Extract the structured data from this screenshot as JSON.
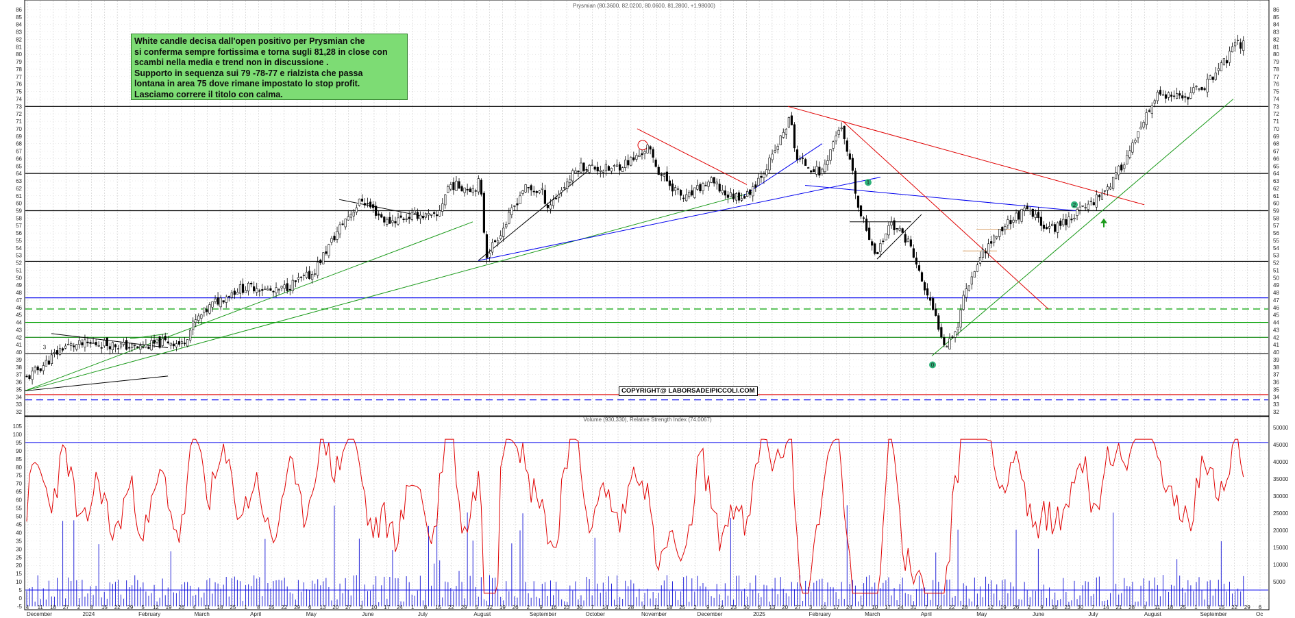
{
  "chart_data": [
    {
      "type": "candlestick",
      "title": "Prysmian (80.3600, 82.0200, 80.0600, 81.2800, +1.98000)",
      "ylim": [
        32,
        86
      ],
      "y_ticks": [
        32,
        33,
        34,
        35,
        36,
        37,
        38,
        39,
        40,
        41,
        42,
        43,
        44,
        45,
        46,
        47,
        48,
        49,
        50,
        51,
        52,
        53,
        54,
        55,
        56,
        57,
        58,
        59,
        60,
        61,
        62,
        63,
        64,
        65,
        66,
        67,
        68,
        69,
        70,
        71,
        72,
        73,
        74,
        75,
        76,
        77,
        78,
        79,
        80,
        81,
        82,
        83,
        84,
        85,
        86
      ],
      "x_day_ticks": [
        "4",
        "11",
        "18",
        "27",
        "2",
        "8",
        "15",
        "22",
        "29",
        "5",
        "12",
        "19",
        "26",
        "4",
        "11",
        "18",
        "25",
        "1",
        "8",
        "15",
        "22",
        "29",
        "6",
        "13",
        "20",
        "27",
        "3",
        "10",
        "17",
        "24",
        "1",
        "8",
        "15",
        "22",
        "29",
        "5",
        "12",
        "19",
        "26",
        "2",
        "9",
        "16",
        "23",
        "30",
        "7",
        "14",
        "21",
        "28",
        "4",
        "11",
        "18",
        "25",
        "2",
        "9",
        "16",
        "23",
        "30",
        "6",
        "13",
        "20",
        "27",
        "3",
        "10",
        "17",
        "24",
        "3",
        "10",
        "17",
        "24",
        "31",
        "7",
        "14",
        "22",
        "28",
        "5",
        "12",
        "19",
        "26",
        "2",
        "9",
        "16",
        "23",
        "30",
        "7",
        "14",
        "21",
        "28",
        "4",
        "11",
        "18",
        "25",
        "1",
        "8",
        "15",
        "22",
        "29",
        "6"
      ],
      "x_month_labels": [
        "December",
        "2024",
        "February",
        "March",
        "April",
        "May",
        "June",
        "July",
        "August",
        "September",
        "October",
        "November",
        "December",
        "2025",
        "February",
        "March",
        "April",
        "May",
        "June",
        "July",
        "August",
        "September",
        "Oc"
      ],
      "close_path": [
        {
          "p": 0.0,
          "v": 36.5
        },
        {
          "p": 0.015,
          "v": 38.5
        },
        {
          "p": 0.03,
          "v": 40.8
        },
        {
          "p": 0.06,
          "v": 41.2
        },
        {
          "p": 0.09,
          "v": 40.6
        },
        {
          "p": 0.115,
          "v": 41.5
        },
        {
          "p": 0.125,
          "v": 41.0
        },
        {
          "p": 0.135,
          "v": 44.0
        },
        {
          "p": 0.15,
          "v": 46.5
        },
        {
          "p": 0.17,
          "v": 48.5
        },
        {
          "p": 0.185,
          "v": 48.8
        },
        {
          "p": 0.2,
          "v": 48.0
        },
        {
          "p": 0.23,
          "v": 50.5
        },
        {
          "p": 0.255,
          "v": 57.5
        },
        {
          "p": 0.27,
          "v": 60.5
        },
        {
          "p": 0.29,
          "v": 57.5
        },
        {
          "p": 0.315,
          "v": 58.5
        },
        {
          "p": 0.33,
          "v": 58.0
        },
        {
          "p": 0.34,
          "v": 62.5
        },
        {
          "p": 0.36,
          "v": 62.0
        },
        {
          "p": 0.365,
          "v": 63.0
        },
        {
          "p": 0.37,
          "v": 53.0
        },
        {
          "p": 0.385,
          "v": 57.0
        },
        {
          "p": 0.4,
          "v": 62.0
        },
        {
          "p": 0.415,
          "v": 61.5
        },
        {
          "p": 0.42,
          "v": 59.5
        },
        {
          "p": 0.445,
          "v": 65.0
        },
        {
          "p": 0.47,
          "v": 64.5
        },
        {
          "p": 0.49,
          "v": 66.0
        },
        {
          "p": 0.5,
          "v": 67.5
        },
        {
          "p": 0.51,
          "v": 64.0
        },
        {
          "p": 0.53,
          "v": 60.5
        },
        {
          "p": 0.55,
          "v": 63.0
        },
        {
          "p": 0.565,
          "v": 61.0
        },
        {
          "p": 0.58,
          "v": 61.0
        },
        {
          "p": 0.6,
          "v": 66.0
        },
        {
          "p": 0.615,
          "v": 71.5
        },
        {
          "p": 0.62,
          "v": 66.0
        },
        {
          "p": 0.64,
          "v": 64.0
        },
        {
          "p": 0.655,
          "v": 70.5
        },
        {
          "p": 0.665,
          "v": 64.0
        },
        {
          "p": 0.67,
          "v": 59.0
        },
        {
          "p": 0.685,
          "v": 53.0
        },
        {
          "p": 0.695,
          "v": 57.5
        },
        {
          "p": 0.71,
          "v": 55.0
        },
        {
          "p": 0.72,
          "v": 50.0
        },
        {
          "p": 0.73,
          "v": 45.5
        },
        {
          "p": 0.74,
          "v": 41.0
        },
        {
          "p": 0.75,
          "v": 43.5
        },
        {
          "p": 0.755,
          "v": 48.0
        },
        {
          "p": 0.77,
          "v": 53.5
        },
        {
          "p": 0.79,
          "v": 57.5
        },
        {
          "p": 0.805,
          "v": 59.0
        },
        {
          "p": 0.825,
          "v": 56.5
        },
        {
          "p": 0.84,
          "v": 58.0
        },
        {
          "p": 0.86,
          "v": 60.5
        },
        {
          "p": 0.875,
          "v": 63.0
        },
        {
          "p": 0.895,
          "v": 69.0
        },
        {
          "p": 0.91,
          "v": 74.5
        },
        {
          "p": 0.93,
          "v": 74.0
        },
        {
          "p": 0.95,
          "v": 76.0
        },
        {
          "p": 0.965,
          "v": 79.0
        },
        {
          "p": 0.975,
          "v": 81.5
        },
        {
          "p": 0.98,
          "v": 81.28
        }
      ],
      "annotation": [
        "White candle decisa dall'open positivo per Prysmian che",
        "si conferma sempre fortissima e torna sugli 81,28 in close con",
        "scambi nella media e trend non in discussione .",
        "Supporto in sequenza sui 79 -78-77 e rialzista che passa",
        "lontana in area 75 dove rimane impostato lo stop profit.",
        "Lasciamo correre il titolo con calma."
      ],
      "copyright": "COPYRIGHT@ LABORSADEIPICCOLI.COM",
      "markers": [
        "3",
        "1",
        "2",
        "0"
      ],
      "horizontal_levels": [
        {
          "value": 73,
          "color": "#000000",
          "style": "solid"
        },
        {
          "value": 64,
          "color": "#000000",
          "style": "solid"
        },
        {
          "value": 59,
          "color": "#000000",
          "style": "solid"
        },
        {
          "value": 52.2,
          "color": "#000000",
          "style": "solid"
        },
        {
          "value": 47.3,
          "color": "#0000ee",
          "style": "solid"
        },
        {
          "value": 45.8,
          "color": "#00a000",
          "style": "dashed"
        },
        {
          "value": 44.0,
          "color": "#00a000",
          "style": "solid"
        },
        {
          "value": 42.0,
          "color": "#008000",
          "style": "solid"
        },
        {
          "value": 39.8,
          "color": "#000000",
          "style": "solid"
        },
        {
          "value": 34.3,
          "color": "#e00000",
          "style": "solid"
        },
        {
          "value": 33.6,
          "color": "#0000ee",
          "style": "dashed"
        }
      ]
    },
    {
      "type": "line+bar",
      "title": "Volume (930,330), Relative Strength Index (74.0067)",
      "ylim": [
        -5,
        105
      ],
      "y_ticks_left": [
        -5,
        0,
        5,
        10,
        15,
        20,
        25,
        30,
        35,
        40,
        45,
        50,
        55,
        60,
        65,
        70,
        75,
        80,
        85,
        90,
        95,
        100,
        105
      ],
      "y_ticks_right": [
        "5000",
        "10000",
        "15000",
        "20000",
        "25000",
        "30000",
        "35000",
        "40000",
        "45000",
        "50000"
      ],
      "rsi_current": 74.0067,
      "volume_current": 930330,
      "rsi_levels": [
        95,
        5
      ]
    }
  ]
}
